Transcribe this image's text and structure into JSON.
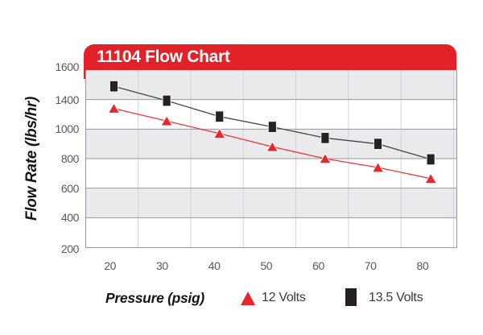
{
  "chart_data": {
    "type": "line",
    "title": "11104 Flow Chart",
    "xlabel": "Pressure (psig)",
    "ylabel": "Flow Rate (lbs/hr)",
    "x": [
      20,
      30,
      40,
      50,
      60,
      70,
      80
    ],
    "x_tick_labels": [
      "20",
      "30",
      "40",
      "50",
      "60",
      "70",
      "80"
    ],
    "y_tick_labels": [
      "1600",
      "1400",
      "1000",
      "800",
      "600",
      "400",
      "200"
    ],
    "grid": true,
    "legend_position": "bottom",
    "series": [
      {
        "name": "12 Volts",
        "marker": "triangle",
        "color": "#e8262c",
        "values": [
          1280,
          1110,
          970,
          880,
          800,
          740,
          665
        ]
      },
      {
        "name": "13.5 Volts",
        "marker": "square",
        "color": "#262224",
        "values": [
          1490,
          1385,
          1170,
          1030,
          940,
          900,
          795
        ]
      }
    ]
  },
  "colors": {
    "banner_red": "#e32128",
    "band_gray": "#eaeaed",
    "h_gridline": "#98989b",
    "v_gridline": "#d4d4d8",
    "line_12v": "#e8353b",
    "line_135v": "#47474a"
  }
}
